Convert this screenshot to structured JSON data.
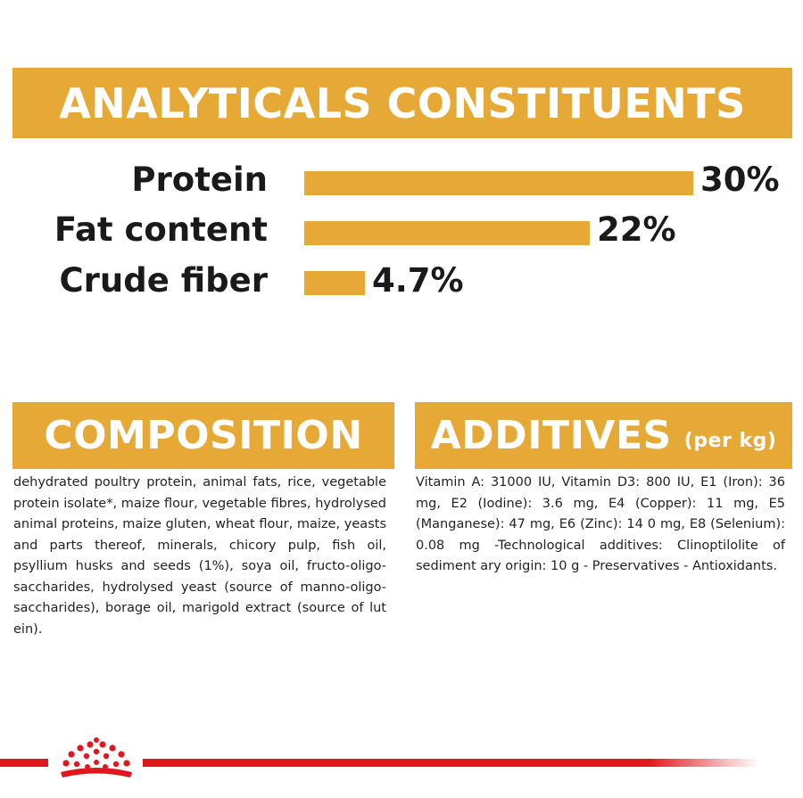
{
  "analytics": {
    "title": "ANALYTICALS CONSTITUENTS",
    "rows": [
      {
        "label": "Protein",
        "value_text": "30%",
        "value": 30
      },
      {
        "label": "Fat content",
        "value_text": "22%",
        "value": 22
      },
      {
        "label": "Crude fiber",
        "value_text": "4.7%",
        "value": 4.7
      }
    ]
  },
  "composition": {
    "title": "COMPOSITION",
    "text": "dehydrated poultry protein, animal fats, rice, vegetable protein isolate*, maize flour, vegetable fibres, hydrolysed animal proteins, maize gluten, wheat flour, maize, yeasts and parts thereof, minerals, chicory pulp, fish oil, psyllium husks and seeds (1%), soya oil, fructo-oligo-saccharides, hydrolysed yeast (source of manno-oligo-saccharides), borage oil, marigold extract (source of lut ein)."
  },
  "additives": {
    "title": "ADDITIVES",
    "unit": "(per kg)",
    "text": "Vitamin A: 31000 IU, Vitamin D3: 800 IU, E1 (Iron): 36 mg, E2 (Iodine): 3.6 mg, E4 (Copper): 11 mg, E5 (Manganese): 47 mg, E6 (Zinc): 14 0 mg, E8 (Selenium): 0.08 mg -Technological additives: Clinoptilolite of sediment ary origin: 10 g - Preservatives - Antioxidants."
  },
  "colors": {
    "accent": "#e6a935",
    "brand_red": "#e1161e"
  },
  "logo": {
    "icon": "crown-icon"
  }
}
